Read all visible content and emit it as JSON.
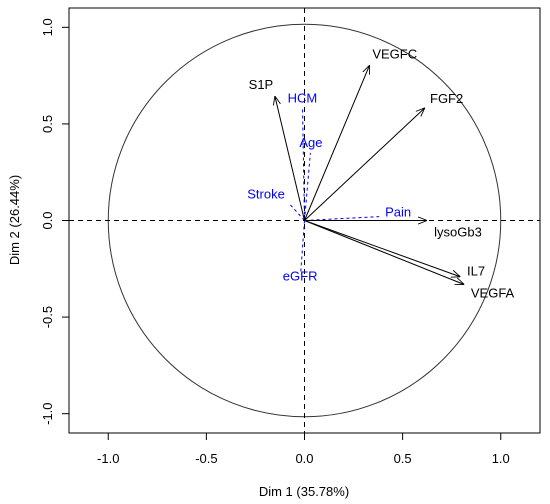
{
  "chart_data": {
    "type": "scatter",
    "xlabel": "Dim 1 (35.78%)",
    "ylabel": "Dim 2 (26.44%)",
    "xlim": [
      -1.2,
      1.2
    ],
    "ylim": [
      -1.1,
      1.1
    ],
    "x_ticks": [
      -1.0,
      -0.5,
      0.0,
      0.5,
      1.0
    ],
    "x_tick_labels": [
      "-1.0",
      "-0.5",
      "0.0",
      "0.5",
      "1.0"
    ],
    "y_ticks": [
      -1.0,
      -0.5,
      0.0,
      0.5,
      1.0
    ],
    "y_tick_labels": [
      "-1.0",
      "-0.5",
      "0.0",
      "0.5",
      "1.0"
    ],
    "unit_circle": true,
    "reference_lines": [
      0,
      0
    ],
    "active_color": "#000000",
    "supplementary_color": "#0000ff",
    "active_variables": [
      {
        "name": "S1P",
        "x": -0.15,
        "y": 0.64
      },
      {
        "name": "VEGFC",
        "x": 0.33,
        "y": 0.8
      },
      {
        "name": "FGF2",
        "x": 0.61,
        "y": 0.58
      },
      {
        "name": "lysoGb3",
        "x": 0.62,
        "y": 0.0
      },
      {
        "name": "IL7",
        "x": 0.79,
        "y": -0.29
      },
      {
        "name": "VEGFA",
        "x": 0.81,
        "y": -0.33
      }
    ],
    "supplementary_variables": [
      {
        "name": "HCM",
        "x": -0.01,
        "y": 0.58
      },
      {
        "name": "Age",
        "x": 0.03,
        "y": 0.35
      },
      {
        "name": "Stroke",
        "x": -0.08,
        "y": 0.09
      },
      {
        "name": "Pain",
        "x": 0.38,
        "y": 0.02
      },
      {
        "name": "eGFR",
        "x": -0.02,
        "y": -0.28
      }
    ]
  }
}
